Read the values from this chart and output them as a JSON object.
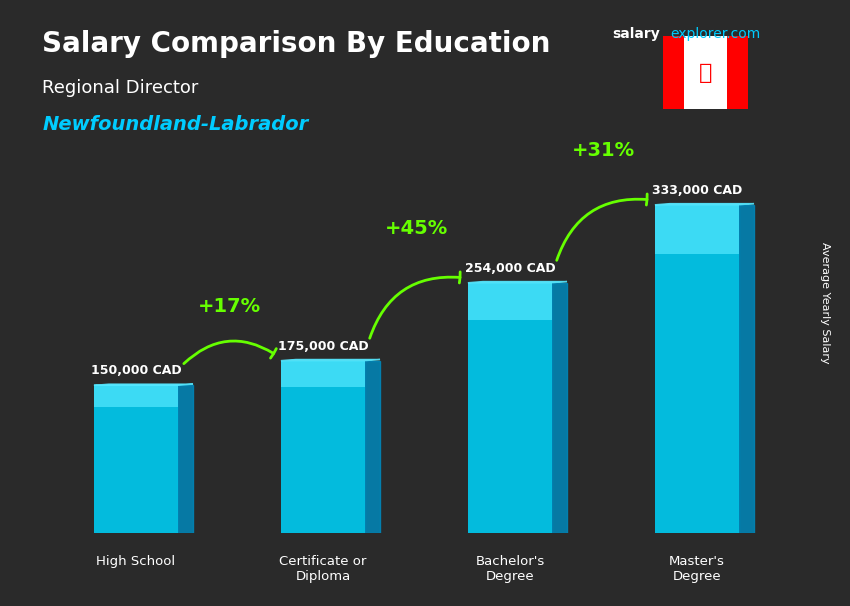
{
  "title_salary": "Salary Comparison By Education",
  "subtitle_job": "Regional Director",
  "subtitle_location": "Newfoundland-Labrador",
  "ylabel": "Average Yearly Salary",
  "watermark": "salaryexplorer.com",
  "categories": [
    "High School",
    "Certificate or\nDiploma",
    "Bachelor's\nDegree",
    "Master's\nDegree"
  ],
  "values": [
    150000,
    175000,
    254000,
    333000
  ],
  "value_labels": [
    "150,000 CAD",
    "175,000 CAD",
    "254,000 CAD",
    "333,000 CAD"
  ],
  "pct_labels": [
    "+17%",
    "+45%",
    "+31%"
  ],
  "bar_color_top": "#00d4ff",
  "bar_color_mid": "#00aadd",
  "bar_color_bottom": "#0077bb",
  "bar_color_side": "#005599",
  "bg_color": "#1a1a2e",
  "text_color_white": "#ffffff",
  "text_color_cyan": "#00ccff",
  "text_color_green": "#66ff00",
  "arrow_color": "#66ff00",
  "ylim": [
    0,
    400000
  ],
  "bar_width": 0.45
}
